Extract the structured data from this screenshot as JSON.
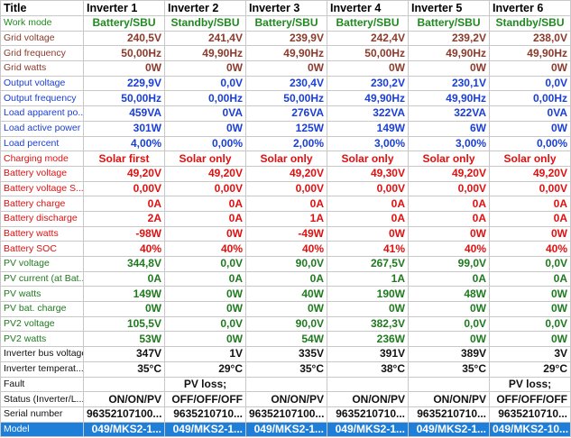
{
  "table": {
    "header": [
      "Title",
      "Inverter 1",
      "Inverter 2",
      "Inverter 3",
      "Inverter 4",
      "Inverter 5",
      "Inverter 6"
    ],
    "rows": [
      {
        "label": "Work mode",
        "color": "#1f8a1f",
        "align": "center",
        "cells": [
          "Battery/SBU",
          "Standby/SBU",
          "Battery/SBU",
          "Battery/SBU",
          "Battery/SBU",
          "Standby/SBU"
        ]
      },
      {
        "label": "Grid voltage",
        "color": "#8b3a2b",
        "cells": [
          "240,5V",
          "241,4V",
          "239,9V",
          "242,4V",
          "239,2V",
          "238,0V"
        ]
      },
      {
        "label": "Grid frequency",
        "color": "#8b3a2b",
        "cells": [
          "50,00Hz",
          "49,90Hz",
          "49,90Hz",
          "50,00Hz",
          "49,90Hz",
          "49,90Hz"
        ]
      },
      {
        "label": "Grid watts",
        "color": "#8b3a2b",
        "cells": [
          "0W",
          "0W",
          "0W",
          "0W",
          "0W",
          "0W"
        ]
      },
      {
        "label": "Output voltage",
        "color": "#1a3fd6",
        "cells": [
          "229,9V",
          "0,0V",
          "230,4V",
          "230,2V",
          "230,1V",
          "0,0V"
        ]
      },
      {
        "label": "Output frequency",
        "color": "#1a3fd6",
        "cells": [
          "50,00Hz",
          "0,00Hz",
          "50,00Hz",
          "49,90Hz",
          "49,90Hz",
          "0,00Hz"
        ]
      },
      {
        "label": "Load apparent po...",
        "color": "#1a3fd6",
        "cells": [
          "459VA",
          "0VA",
          "276VA",
          "322VA",
          "322VA",
          "0VA"
        ]
      },
      {
        "label": "Load active power",
        "color": "#1a3fd6",
        "cells": [
          "301W",
          "0W",
          "125W",
          "149W",
          "6W",
          "0W"
        ]
      },
      {
        "label": "Load percent",
        "color": "#1a3fd6",
        "cells": [
          "4,00%",
          "0,00%",
          "2,00%",
          "3,00%",
          "3,00%",
          "0,00%"
        ]
      },
      {
        "label": "Charging mode",
        "color": "#e01010",
        "align": "center",
        "cells": [
          "Solar first",
          "Solar only",
          "Solar only",
          "Solar only",
          "Solar only",
          "Solar only"
        ]
      },
      {
        "label": "Battery voltage",
        "color": "#e01010",
        "cells": [
          "49,20V",
          "49,20V",
          "49,20V",
          "49,30V",
          "49,20V",
          "49,20V"
        ]
      },
      {
        "label": "Battery voltage S...",
        "color": "#e01010",
        "cells": [
          "0,00V",
          "0,00V",
          "0,00V",
          "0,00V",
          "0,00V",
          "0,00V"
        ]
      },
      {
        "label": "Battery charge",
        "color": "#e01010",
        "cells": [
          "0A",
          "0A",
          "0A",
          "0A",
          "0A",
          "0A"
        ]
      },
      {
        "label": "Battery discharge",
        "color": "#e01010",
        "cells": [
          "2A",
          "0A",
          "1A",
          "0A",
          "0A",
          "0A"
        ]
      },
      {
        "label": "Battery watts",
        "color": "#e01010",
        "cells": [
          "-98W",
          "0W",
          "-49W",
          "0W",
          "0W",
          "0W"
        ]
      },
      {
        "label": "Battery SOC",
        "color": "#e01010",
        "cells": [
          "40%",
          "40%",
          "40%",
          "41%",
          "40%",
          "40%"
        ]
      },
      {
        "label": "PV voltage",
        "color": "#1f7a1f",
        "cells": [
          "344,8V",
          "0,0V",
          "90,0V",
          "267,5V",
          "99,0V",
          "0,0V"
        ]
      },
      {
        "label": "PV current (at Bat...",
        "color": "#1f7a1f",
        "cells": [
          "0A",
          "0A",
          "0A",
          "1A",
          "0A",
          "0A"
        ]
      },
      {
        "label": "PV watts",
        "color": "#1f7a1f",
        "cells": [
          "149W",
          "0W",
          "40W",
          "190W",
          "48W",
          "0W"
        ]
      },
      {
        "label": "PV bat. charge",
        "color": "#1f7a1f",
        "cells": [
          "0W",
          "0W",
          "0W",
          "0W",
          "0W",
          "0W"
        ]
      },
      {
        "label": "PV2 voltage",
        "color": "#1f7a1f",
        "cells": [
          "105,5V",
          "0,0V",
          "90,0V",
          "382,3V",
          "0,0V",
          "0,0V"
        ]
      },
      {
        "label": "PV2 watts",
        "color": "#1f7a1f",
        "cells": [
          "53W",
          "0W",
          "54W",
          "236W",
          "0W",
          "0W"
        ]
      },
      {
        "label": "Inverter bus voltage",
        "color": "#111111",
        "cells": [
          "347V",
          "1V",
          "335V",
          "391V",
          "389V",
          "3V"
        ]
      },
      {
        "label": "Inverter temperat...",
        "color": "#111111",
        "cells": [
          "35°C",
          "29°C",
          "35°C",
          "38°C",
          "35°C",
          "29°C"
        ]
      },
      {
        "label": "Fault",
        "color": "#111111",
        "align": "center",
        "cells": [
          null,
          "PV loss;",
          null,
          null,
          null,
          "PV loss;"
        ]
      },
      {
        "label": "Status (Inverter/L...",
        "color": "#111111",
        "cells": [
          "ON/ON/PV",
          "OFF/OFF/OFF",
          "ON/ON/PV",
          "ON/ON/PV",
          "ON/ON/PV",
          "OFF/OFF/OFF"
        ]
      },
      {
        "label": "Serial number",
        "color": "#111111",
        "cells": [
          "96352107100...",
          "9635210710...",
          "96352107100...",
          "9635210710...",
          "9635210710...",
          "9635210710..."
        ]
      },
      {
        "label": "Model",
        "color": "#111111",
        "highlight": true,
        "cells": [
          "049/MKS2-1...",
          "049/MKS2-1...",
          "049/MKS2-1...",
          "049/MKS2-1...",
          "049/MKS2-1...",
          "049/MKS2-10..."
        ]
      }
    ]
  }
}
